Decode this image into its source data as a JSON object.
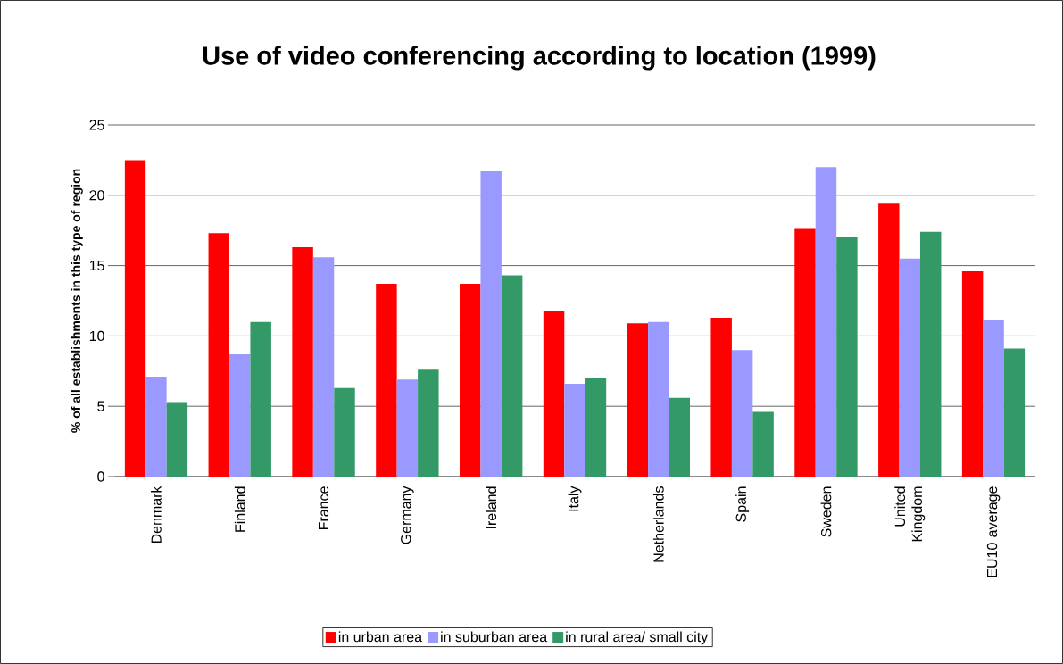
{
  "chart_data": {
    "type": "bar",
    "title": "Use of video conferencing according to location (1999)",
    "ylabel": "% of all establishments in this type of region",
    "categories": [
      "Denmark",
      "Finland",
      "France",
      "Germany",
      "Ireland",
      "Italy",
      "Netherlands",
      "Spain",
      "Sweden",
      "United Kingdom",
      "EU10 average"
    ],
    "series": [
      {
        "name": "in urban area",
        "color": "#ff0000",
        "values": [
          22.5,
          17.3,
          16.3,
          13.7,
          13.7,
          11.8,
          10.9,
          11.3,
          17.6,
          19.4,
          14.6
        ]
      },
      {
        "name": "in suburban area",
        "color": "#9999ff",
        "values": [
          7.1,
          8.7,
          15.6,
          6.9,
          21.7,
          6.6,
          11.0,
          9.0,
          22.0,
          15.5,
          11.1
        ]
      },
      {
        "name": "in rural area/ small city",
        "color": "#339966",
        "values": [
          5.3,
          11.0,
          6.3,
          7.6,
          14.3,
          7.0,
          5.6,
          4.6,
          17.0,
          17.4,
          9.1
        ]
      }
    ],
    "ylim": [
      0,
      25
    ],
    "yticks": [
      0,
      5,
      10,
      15,
      20,
      25
    ],
    "grid": "y",
    "legend": "bottom"
  }
}
